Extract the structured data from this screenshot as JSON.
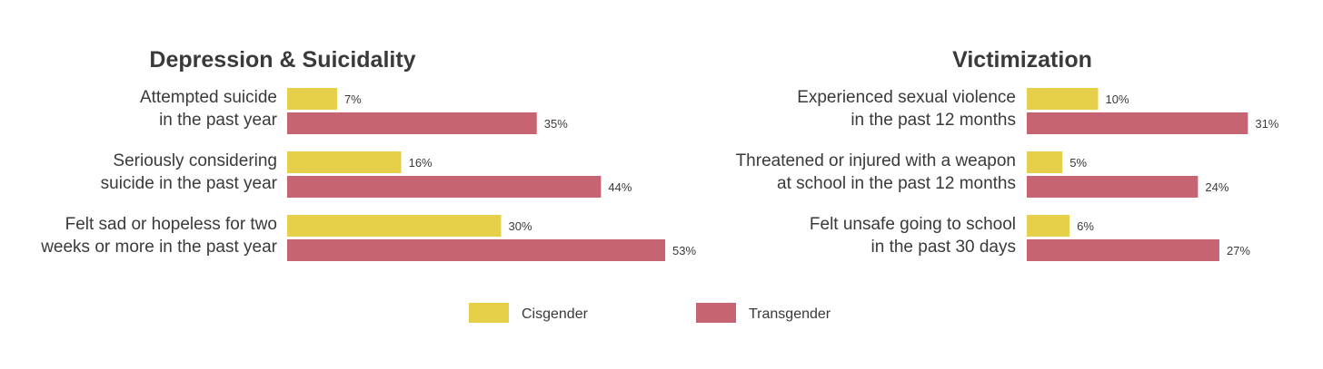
{
  "colors": {
    "cisgender": "#e6d04a",
    "transgender": "#c66571",
    "text": "#3a3a3a"
  },
  "legend": [
    {
      "label": "Cisgender",
      "color": "#e6d04a"
    },
    {
      "label": "Transgender",
      "color": "#c66571"
    }
  ],
  "chart_data": [
    {
      "type": "bar",
      "orientation": "horizontal",
      "title": "Depression & Suicidality",
      "categories": [
        [
          "Attempted suicide",
          "in the past year"
        ],
        [
          "Seriously considering",
          "suicide in the past year"
        ],
        [
          "Felt sad or hopeless for two",
          "weeks or more in the past year"
        ]
      ],
      "series": [
        {
          "name": "Cisgender",
          "values": [
            7,
            16,
            30
          ]
        },
        {
          "name": "Transgender",
          "values": [
            35,
            44,
            53
          ]
        }
      ],
      "unit": "%",
      "grid": false,
      "legend": "bottom"
    },
    {
      "type": "bar",
      "orientation": "horizontal",
      "title": "Victimization",
      "categories": [
        [
          "Experienced sexual violence",
          "in the past 12 months"
        ],
        [
          "Threatened or injured with a weapon",
          "at school in the past 12 months"
        ],
        [
          "Felt unsafe going to school",
          "in the past 30 days"
        ]
      ],
      "series": [
        {
          "name": "Cisgender",
          "values": [
            10,
            5,
            6
          ]
        },
        {
          "name": "Transgender",
          "values": [
            31,
            24,
            27
          ]
        }
      ],
      "unit": "%",
      "grid": false,
      "legend": "bottom"
    }
  ]
}
